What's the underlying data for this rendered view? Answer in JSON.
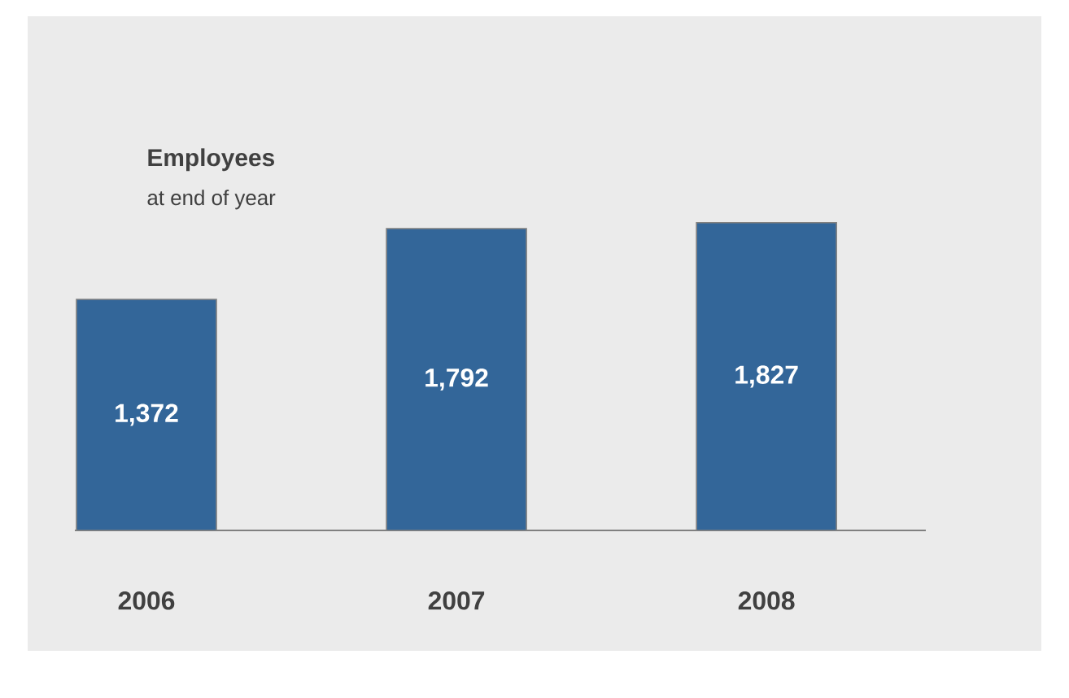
{
  "chart_data": {
    "type": "bar",
    "title": "Employees",
    "subtitle": "at end of year",
    "categories": [
      "2006",
      "2007",
      "2008"
    ],
    "values": [
      1372,
      1792,
      1827
    ],
    "value_labels": [
      "1,372",
      "1,792",
      "1,827"
    ],
    "color": "#336699"
  }
}
